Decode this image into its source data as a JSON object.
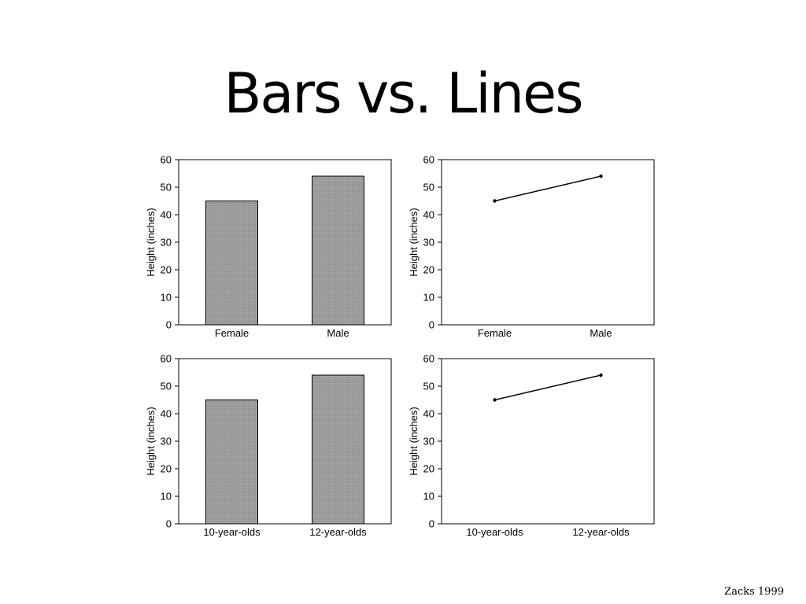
{
  "slide": {
    "title": "Bars vs. Lines",
    "citation": "Zacks 1999"
  },
  "colors": {
    "bar_fill": "#999999",
    "line": "#000000",
    "frame": "#000000"
  },
  "chart_data": [
    {
      "type": "bar",
      "categories": [
        "Female",
        "Male"
      ],
      "values": [
        45,
        54
      ],
      "ylabel": "Height (inches)",
      "ylim": [
        0,
        60
      ],
      "yticks": [
        0,
        10,
        20,
        30,
        40,
        50,
        60
      ],
      "grid": false
    },
    {
      "type": "line",
      "categories": [
        "Female",
        "Male"
      ],
      "values": [
        45,
        54
      ],
      "ylabel": "Height (inches)",
      "ylim": [
        0,
        60
      ],
      "yticks": [
        0,
        10,
        20,
        30,
        40,
        50,
        60
      ],
      "grid": false
    },
    {
      "type": "bar",
      "categories": [
        "10-year-olds",
        "12-year-olds"
      ],
      "values": [
        45,
        54
      ],
      "ylabel": "Height (inches)",
      "ylim": [
        0,
        60
      ],
      "yticks": [
        0,
        10,
        20,
        30,
        40,
        50,
        60
      ],
      "grid": false
    },
    {
      "type": "line",
      "categories": [
        "10-year-olds",
        "12-year-olds"
      ],
      "values": [
        45,
        54
      ],
      "ylabel": "Height (inches)",
      "ylim": [
        0,
        60
      ],
      "yticks": [
        0,
        10,
        20,
        30,
        40,
        50,
        60
      ],
      "grid": false
    }
  ]
}
